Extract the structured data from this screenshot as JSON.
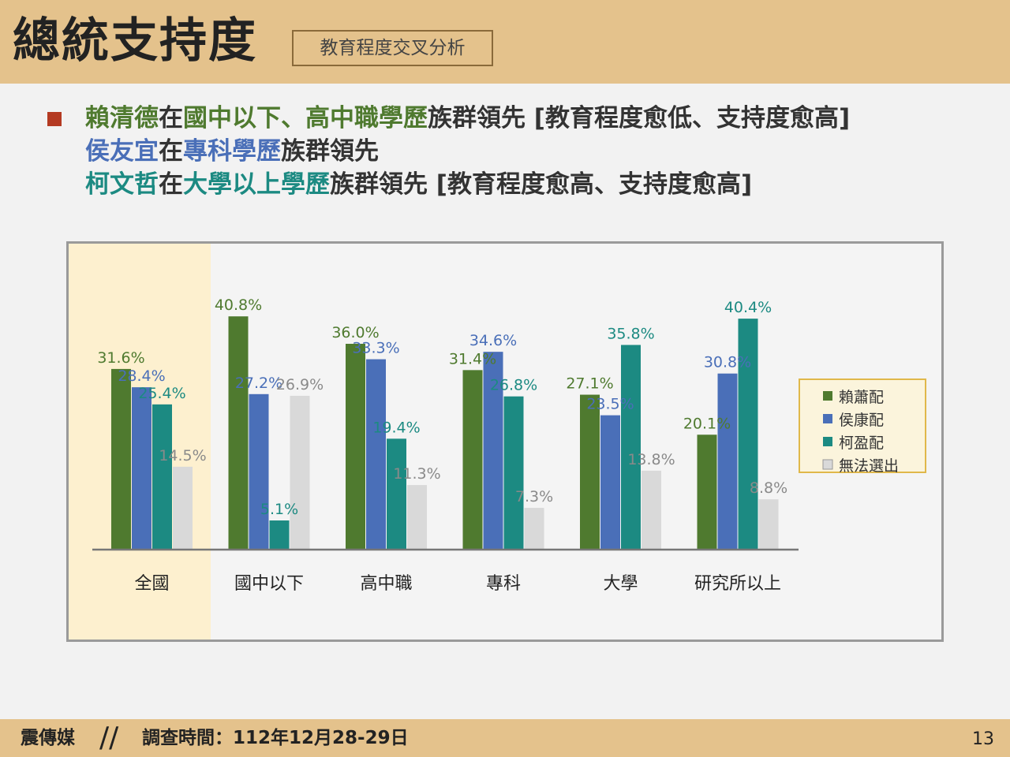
{
  "header": {
    "title": "總統支持度",
    "subtitle": "教育程度交叉分析"
  },
  "bullets": {
    "line1": {
      "name": "賴清德",
      "t1": "在",
      "groups": "國中以下、高中職學歷",
      "t2": "族群領先 [教育程度愈低、支持度愈高]"
    },
    "line2": {
      "name": "侯友宜",
      "t1": "在",
      "groups": "專科學歷",
      "t2": "族群領先"
    },
    "line3": {
      "name": "柯文哲",
      "t1": "在",
      "groups": "大學以上學歷",
      "t2": "族群領先 [教育程度愈高、支持度愈高]"
    }
  },
  "colors": {
    "lai": "#4f7a2f",
    "hou": "#4a6fb8",
    "ko": "#1c8a82",
    "none": "#d9d9d9",
    "highlight": "#fdf0cf",
    "accent": "#b43a22",
    "header_bg": "#e4c28c"
  },
  "chart_data": {
    "type": "bar",
    "categories": [
      "全國",
      "國中以下",
      "高中職",
      "專科",
      "大學",
      "研究所以上"
    ],
    "series": [
      {
        "name": "賴蕭配",
        "values": [
          31.6,
          40.8,
          36.0,
          31.4,
          27.1,
          20.1
        ],
        "labels": [
          "31.6%",
          "40.8%",
          "36.0%",
          "31.4%",
          "27.1%",
          "20.1%"
        ]
      },
      {
        "name": "侯康配",
        "values": [
          28.4,
          27.2,
          33.3,
          34.6,
          23.5,
          30.8
        ],
        "labels": [
          "28.4%",
          "27.2%",
          "33.3%",
          "34.6%",
          "23.5%",
          "30.8%"
        ]
      },
      {
        "name": "柯盈配",
        "values": [
          25.4,
          5.1,
          19.4,
          26.8,
          35.8,
          40.4
        ],
        "labels": [
          "25.4%",
          "5.1%",
          "19.4%",
          "26.8%",
          "35.8%",
          "40.4%"
        ]
      },
      {
        "name": "無法選出",
        "values": [
          14.5,
          26.9,
          11.3,
          7.3,
          13.8,
          8.8
        ],
        "labels": [
          "14.5%",
          "26.9%",
          "11.3%",
          "7.3%",
          "13.8%",
          "8.8%"
        ]
      }
    ],
    "ylim": [
      0,
      45
    ],
    "legend_position": "right",
    "highlight_category": "全國"
  },
  "footer": {
    "brand": "震傳媒",
    "separator": "//",
    "date": "調查時間：112年12月28-29日",
    "page": "13"
  }
}
